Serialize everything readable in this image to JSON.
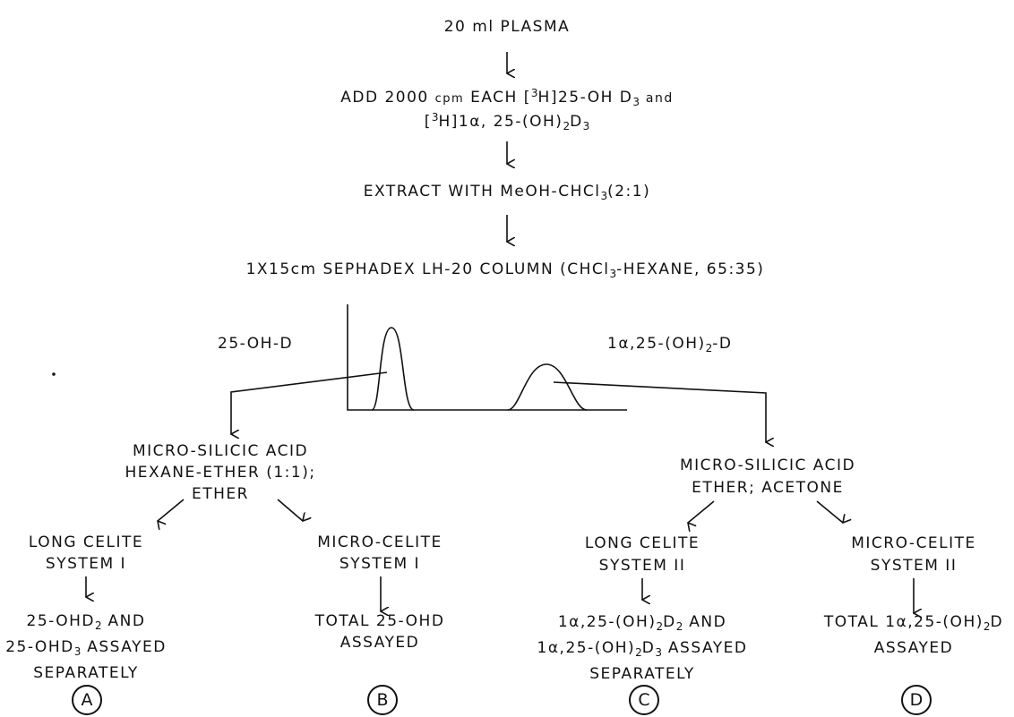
{
  "steps": {
    "plasma": "20 ml PLASMA",
    "add_line1_a": "ADD 2000",
    "add_line1_cpm": "cpm",
    "add_line1_b": "EACH",
    "add_line1_h3": "3",
    "add_line1_h": "H",
    "add_line1_c": "25-OH D",
    "add_line1_sub": "3",
    "add_line1_and": "and",
    "add_line2_h3": "3",
    "add_line2_h": "H",
    "add_line2_a": "1α, 25-(OH)",
    "add_line2_sub1": "2",
    "add_line2_b": "D",
    "add_line2_sub2": "3",
    "extract_a": "EXTRACT WITH MeOH-CHCl",
    "extract_sub": "3",
    "extract_b": "(2:1)",
    "column_a": "1X15cm SEPHADEX LH-20 COLUMN (CHCl",
    "column_sub": "3",
    "column_b": "-HEXANE, 65:35)"
  },
  "peaks": {
    "left_label": "25-OH-D",
    "right_label_a": "1α,25-(OH)",
    "right_label_sub": "2",
    "right_label_b": "-D"
  },
  "left_branch": {
    "acid_line1": "MICRO-SILICIC ACID",
    "acid_line2": "HEXANE-ETHER (1:1);",
    "acid_line3": "ETHER",
    "long_line1": "LONG CELITE",
    "long_line2": "SYSTEM I",
    "micro_line1": "MICRO-CELITE",
    "micro_line2": "SYSTEM I",
    "result_a1": "25-OHD",
    "result_a1_sub": "2",
    "result_a1_b": " AND",
    "result_a2": "25-OHD",
    "result_a2_sub": "3",
    "result_a2_b": " ASSAYED",
    "result_a3": "SEPARATELY",
    "result_b1": "TOTAL 25-OHD",
    "result_b2": "ASSAYED",
    "label_a": "A",
    "label_b": "B"
  },
  "right_branch": {
    "acid_line1": "MICRO-SILICIC ACID",
    "acid_line2": "ETHER; ACETONE",
    "long_line1": "LONG CELITE",
    "long_line2": "SYSTEM II",
    "micro_line1": "MICRO-CELITE",
    "micro_line2": "SYSTEM II",
    "result_c1a": "1α,25-(OH)",
    "result_c1_sub1": "2",
    "result_c1b": "D",
    "result_c1_sub2": "2",
    "result_c1c": " AND",
    "result_c2a": "1α,25-(OH)",
    "result_c2_sub1": "2",
    "result_c2b": "D",
    "result_c2_sub2": "3",
    "result_c2c": " ASSAYED",
    "result_c3": "SEPARATELY",
    "result_d1a": "TOTAL 1α,25-(OH)",
    "result_d1_sub": "2",
    "result_d1b": "D",
    "result_d2": "ASSAYED",
    "label_c": "C",
    "label_d": "D"
  }
}
